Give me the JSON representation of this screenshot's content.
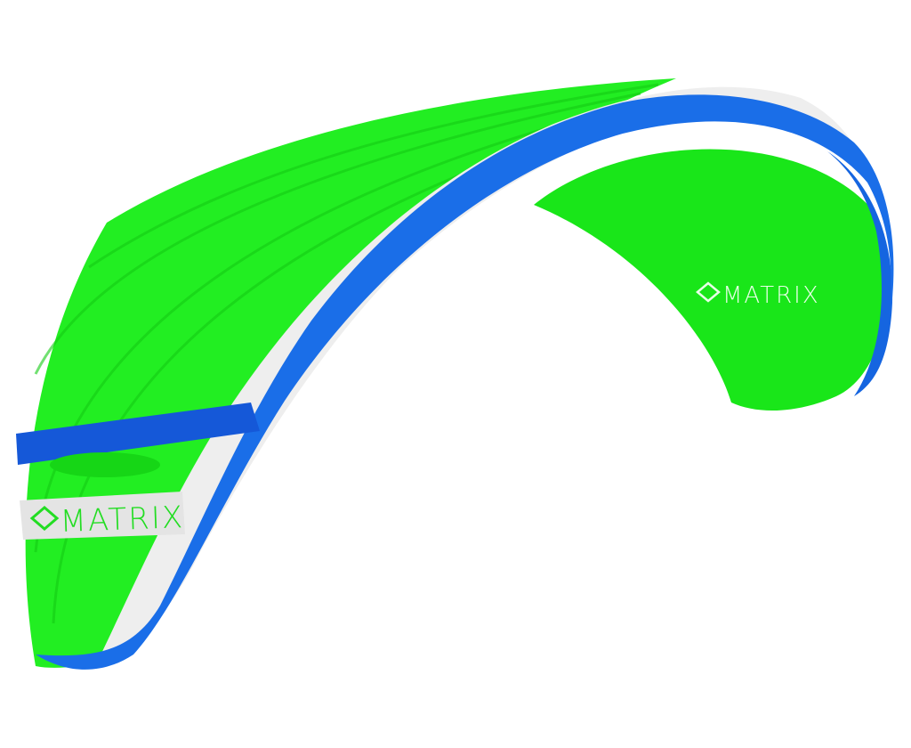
{
  "logos": [
    {
      "text": "MATRIX"
    },
    {
      "text": "MATRIX"
    }
  ]
}
